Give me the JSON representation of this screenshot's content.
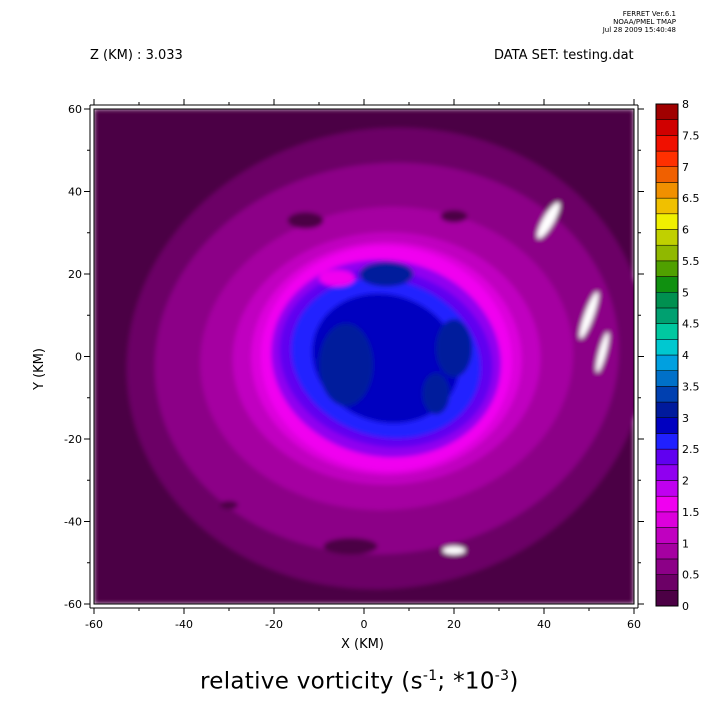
{
  "header": {
    "ferret_version": "FERRET  Ver.6.1",
    "ferret_org": "NOAA/PMEL TMAP",
    "ferret_date": "Jul 28 2009 15:40:48",
    "z_level": "Z (KM) : 3.033",
    "dataset": "DATA SET: testing.dat"
  },
  "chart_data": {
    "type": "heatmap",
    "title_main": "relative vorticity (s",
    "title_exp1": "-1",
    "title_mid": "; *10",
    "title_exp2": "-3",
    "title_end": ")",
    "xlabel": "X (KM)",
    "ylabel": "Y (KM)",
    "xlim": [
      -60,
      60
    ],
    "ylim": [
      -60,
      60
    ],
    "x_ticks": [
      -60,
      -40,
      -20,
      0,
      20,
      40,
      60
    ],
    "y_ticks": [
      -60,
      -40,
      -20,
      0,
      20,
      40,
      60
    ],
    "colorbar": {
      "levels": [
        0,
        0.25,
        0.5,
        0.75,
        1,
        1.25,
        1.5,
        1.75,
        2,
        2.25,
        2.5,
        2.75,
        3,
        3.25,
        3.5,
        3.75,
        4,
        4.25,
        4.5,
        4.75,
        5,
        5.25,
        5.5,
        5.75,
        6,
        6.25,
        6.5,
        6.75,
        7,
        7.25,
        7.5,
        7.75,
        8
      ],
      "labels": [
        "0",
        "0.5",
        "1",
        "1.5",
        "2",
        "2.5",
        "3",
        "3.5",
        "4",
        "4.5",
        "5",
        "5.5",
        "6",
        "6.5",
        "7",
        "7.5",
        "8"
      ],
      "colors": [
        "#4c0045",
        "#6c0066",
        "#8c0087",
        "#a500a1",
        "#c000c0",
        "#dc00dc",
        "#f000f0",
        "#c000f0",
        "#9000f0",
        "#6000f0",
        "#2020ff",
        "#0000c0",
        "#001a9c",
        "#0040b0",
        "#0070c8",
        "#00a0e0",
        "#00c8d0",
        "#00c8a0",
        "#00a070",
        "#009050",
        "#109010",
        "#50a000",
        "#90b800",
        "#c0d000",
        "#f0f000",
        "#f0c000",
        "#f09000",
        "#f06000",
        "#ff3000",
        "#f01000",
        "#d00000",
        "#a00000",
        "#700000"
      ]
    },
    "approx_field": {
      "background_level": 0.5,
      "vortex_center": [
        5,
        0
      ],
      "ring": {
        "radius_km": 27,
        "peak_value": 1.5
      },
      "core": {
        "radius_km": 20,
        "min_value": 2.8
      }
    }
  }
}
